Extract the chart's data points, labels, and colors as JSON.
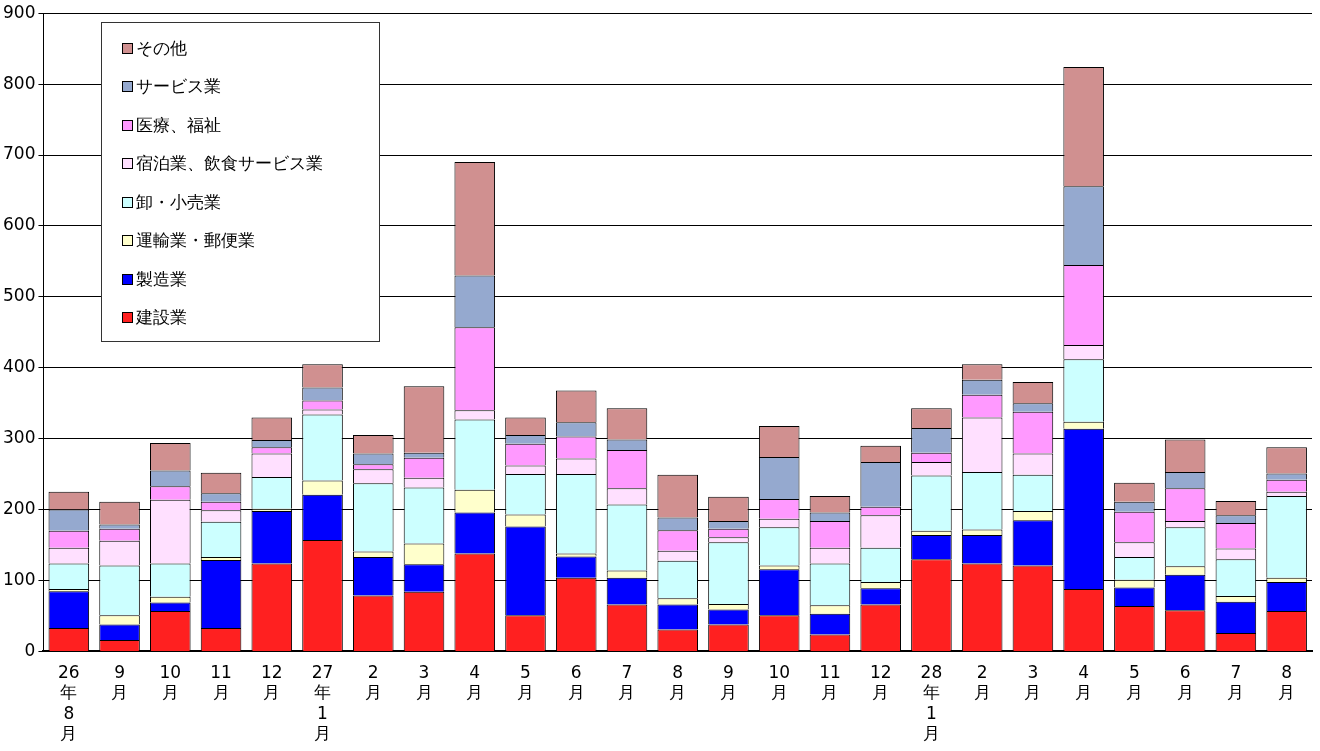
{
  "chart_data": {
    "type": "bar",
    "stacked": true,
    "legend": "top left",
    "grid": "y",
    "categories": [
      "26年8月",
      "9月",
      "10月",
      "11月",
      "12月",
      "27年1月",
      "2月",
      "3月",
      "4月",
      "5月",
      "6月",
      "7月",
      "8月",
      "9月",
      "10月",
      "11月",
      "12月",
      "28年1月",
      "2月",
      "3月",
      "4月",
      "5月",
      "6月",
      "7月",
      "8月"
    ],
    "ylim": [
      0,
      900
    ],
    "yticks": [
      0,
      100,
      200,
      300,
      400,
      500,
      600,
      700,
      800,
      900
    ],
    "series": [
      {
        "name": "建設業",
        "color": "#ff2020",
        "values": [
          33,
          16,
          57,
          33,
          124,
          157,
          79,
          84,
          138,
          51,
          104,
          66,
          31,
          38,
          51,
          24,
          66,
          130,
          124,
          121,
          88,
          64,
          58,
          26,
          57
        ]
      },
      {
        "name": "製造業",
        "color": "#0000ff",
        "values": [
          52,
          22,
          12,
          96,
          74,
          64,
          54,
          39,
          58,
          125,
          30,
          38,
          35,
          21,
          65,
          29,
          23,
          34,
          40,
          64,
          226,
          26,
          50,
          44,
          41
        ]
      },
      {
        "name": "運輸業・郵便業",
        "color": "#ffffcc",
        "values": [
          3,
          13,
          8,
          4,
          3,
          20,
          8,
          29,
          32,
          17,
          4,
          10,
          9,
          8,
          5,
          12,
          9,
          6,
          8,
          13,
          10,
          11,
          12,
          8,
          6
        ]
      },
      {
        "name": "卸・小売業",
        "color": "#ccffff",
        "values": [
          36,
          70,
          47,
          50,
          45,
          93,
          96,
          79,
          99,
          57,
          112,
          93,
          53,
          87,
          54,
          59,
          48,
          78,
          81,
          51,
          88,
          32,
          55,
          52,
          115
        ]
      },
      {
        "name": "宿泊業、飲食サービス業",
        "color": "#ffe0ff",
        "values": [
          22,
          35,
          90,
          16,
          33,
          7,
          20,
          14,
          13,
          12,
          22,
          23,
          14,
          7,
          12,
          22,
          46,
          19,
          77,
          30,
          20,
          21,
          9,
          15,
          6
        ]
      },
      {
        "name": "医療、福祉",
        "color": "#ff99ff",
        "values": [
          24,
          17,
          19,
          12,
          9,
          13,
          7,
          28,
          117,
          31,
          31,
          54,
          29,
          12,
          28,
          38,
          12,
          13,
          32,
          59,
          113,
          43,
          46,
          36,
          17
        ]
      },
      {
        "name": "サービス業",
        "color": "#95a9cf",
        "values": [
          30,
          6,
          22,
          12,
          10,
          18,
          15,
          7,
          73,
          12,
          20,
          15,
          18,
          11,
          59,
          12,
          63,
          35,
          21,
          12,
          111,
          14,
          23,
          11,
          9
        ]
      },
      {
        "name": "その他",
        "color": "#d09090",
        "values": [
          25,
          32,
          39,
          29,
          32,
          33,
          26,
          94,
          160,
          25,
          45,
          44,
          60,
          34,
          44,
          23,
          23,
          28,
          22,
          30,
          168,
          27,
          46,
          20,
          37
        ]
      }
    ]
  }
}
